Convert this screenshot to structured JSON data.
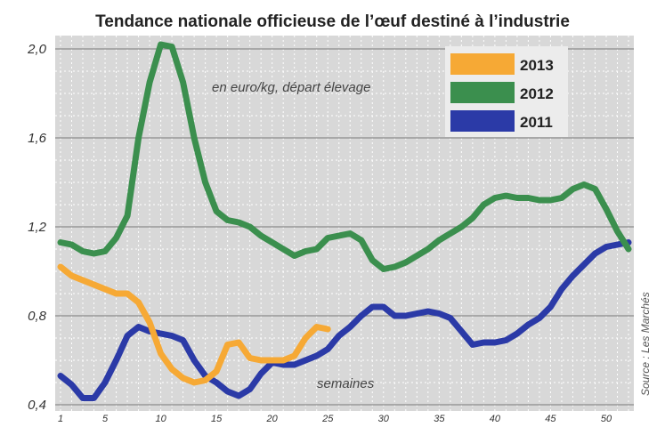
{
  "chart_data": {
    "type": "line",
    "title": "Tendance nationale officieuse de l’œuf destiné à l’industrie",
    "unit_note": "en euro/kg, départ élevage",
    "xlabel": "semaines",
    "source": "Source : Les Marchés",
    "ylim": [
      0.4,
      2.0
    ],
    "xlim": [
      1,
      52
    ],
    "y_ticks": [
      "2,0",
      "1,6",
      "1,2",
      "0,8",
      "0,4"
    ],
    "x_ticks": [
      "1",
      "5",
      "10",
      "15",
      "20",
      "25",
      "30",
      "35",
      "40",
      "45",
      "50"
    ],
    "grid": true,
    "legend_position": "top-right",
    "series": [
      {
        "name": "2013",
        "color": "#f6a935",
        "x": [
          1,
          2,
          3,
          4,
          5,
          6,
          7,
          8,
          9,
          10,
          11,
          12,
          13,
          14,
          15,
          16,
          17,
          18,
          19,
          20,
          21,
          22,
          23,
          24,
          25
        ],
        "y": [
          1.02,
          0.98,
          0.96,
          0.94,
          0.92,
          0.9,
          0.9,
          0.86,
          0.77,
          0.63,
          0.56,
          0.52,
          0.5,
          0.51,
          0.55,
          0.67,
          0.68,
          0.61,
          0.6,
          0.6,
          0.6,
          0.62,
          0.7,
          0.75,
          0.74
        ]
      },
      {
        "name": "2012",
        "color": "#3b8f4e",
        "x": [
          1,
          2,
          3,
          4,
          5,
          6,
          7,
          8,
          9,
          10,
          11,
          12,
          13,
          14,
          15,
          16,
          17,
          18,
          19,
          20,
          21,
          22,
          23,
          24,
          25,
          26,
          27,
          28,
          29,
          30,
          31,
          32,
          33,
          34,
          35,
          36,
          37,
          38,
          39,
          40,
          41,
          42,
          43,
          44,
          45,
          46,
          47,
          48,
          49,
          50,
          51,
          52
        ],
        "y": [
          1.13,
          1.12,
          1.09,
          1.08,
          1.09,
          1.15,
          1.25,
          1.6,
          1.85,
          2.02,
          2.01,
          1.85,
          1.6,
          1.4,
          1.27,
          1.23,
          1.22,
          1.2,
          1.16,
          1.13,
          1.1,
          1.07,
          1.09,
          1.1,
          1.15,
          1.16,
          1.17,
          1.14,
          1.05,
          1.01,
          1.02,
          1.04,
          1.07,
          1.1,
          1.14,
          1.17,
          1.2,
          1.24,
          1.3,
          1.33,
          1.34,
          1.33,
          1.33,
          1.32,
          1.32,
          1.33,
          1.37,
          1.39,
          1.37,
          1.28,
          1.18,
          1.1
        ]
      },
      {
        "name": "2011",
        "color": "#2b3aa7",
        "x": [
          1,
          2,
          3,
          4,
          5,
          6,
          7,
          8,
          9,
          10,
          11,
          12,
          13,
          14,
          15,
          16,
          17,
          18,
          19,
          20,
          21,
          22,
          23,
          24,
          25,
          26,
          27,
          28,
          29,
          30,
          31,
          32,
          33,
          34,
          35,
          36,
          37,
          38,
          39,
          40,
          41,
          42,
          43,
          44,
          45,
          46,
          47,
          48,
          49,
          50,
          51,
          52
        ],
        "y": [
          0.53,
          0.49,
          0.43,
          0.43,
          0.5,
          0.6,
          0.71,
          0.75,
          0.73,
          0.72,
          0.71,
          0.69,
          0.6,
          0.53,
          0.5,
          0.46,
          0.44,
          0.47,
          0.54,
          0.59,
          0.58,
          0.58,
          0.6,
          0.62,
          0.65,
          0.71,
          0.75,
          0.8,
          0.84,
          0.84,
          0.8,
          0.8,
          0.81,
          0.82,
          0.81,
          0.79,
          0.73,
          0.67,
          0.68,
          0.68,
          0.69,
          0.72,
          0.76,
          0.79,
          0.84,
          0.92,
          0.98,
          1.03,
          1.08,
          1.11,
          1.12,
          1.13
        ]
      }
    ]
  }
}
